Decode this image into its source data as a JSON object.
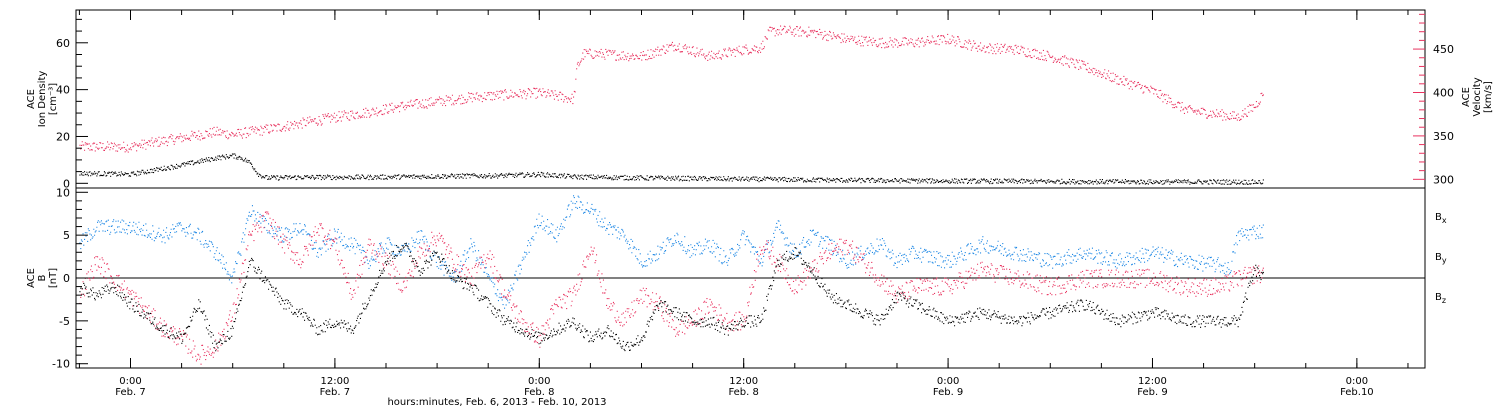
{
  "colors": {
    "black": "#000000",
    "pink": "#e8325f",
    "blue": "#1e88e5"
  },
  "x_axis": {
    "title": "hours:minutes, Feb. 6, 2013 - Feb. 10, 2013",
    "ticks": [
      {
        "time": "0:00",
        "date": "Feb. 7",
        "hours": 24
      },
      {
        "time": "12:00",
        "date": "Feb. 7",
        "hours": 36
      },
      {
        "time": "0:00",
        "date": "Feb. 8",
        "hours": 48
      },
      {
        "time": "12:00",
        "date": "Feb. 8",
        "hours": 60
      },
      {
        "time": "0:00",
        "date": "Feb. 9",
        "hours": 72
      },
      {
        "time": "12:00",
        "date": "Feb. 9",
        "hours": 84
      },
      {
        "time": "0:00",
        "date": "Feb.10",
        "hours": 96
      }
    ]
  },
  "top_panel": {
    "left_axis_label": [
      "ACE",
      "Ion Density",
      "[cm⁻³]"
    ],
    "right_axis_label": [
      "ACE",
      "Velocity",
      "[km/s]"
    ]
  },
  "bottom_panel": {
    "axis_label": [
      "ACE",
      "B",
      "[nT]"
    ],
    "legend": [
      {
        "text": "Bx",
        "sub": "x",
        "base": "B",
        "color": "#000000"
      },
      {
        "text": "By",
        "sub": "y",
        "base": "B",
        "color": "#1e88e5"
      },
      {
        "text": "Bz",
        "sub": "z",
        "base": "B",
        "color": "#e8325f"
      }
    ]
  },
  "chart_data": [
    {
      "type": "scatter",
      "title": "",
      "xlabel": "hours:minutes, Feb. 6, 2013 - Feb. 10, 2013",
      "xlim_hours": [
        20.8,
        100
      ],
      "x_unit": "hours since Feb. 6 00:00",
      "yaxes": [
        {
          "label": "ACE Ion Density [cm⁻³]",
          "side": "left",
          "ylim": [
            -2,
            74
          ],
          "ticks": [
            0,
            20,
            40,
            60
          ]
        },
        {
          "label": "ACE Velocity [km/s]",
          "side": "right",
          "ylim": [
            290,
            495
          ],
          "ticks": [
            300,
            350,
            400,
            450
          ]
        }
      ],
      "series": [
        {
          "name": "Ion Density",
          "color": "#000000",
          "axis": "left",
          "x": [
            21,
            24,
            27,
            29,
            30,
            30.5,
            31,
            31.5,
            32,
            34,
            38,
            42,
            46,
            48,
            50,
            54,
            60,
            66,
            72,
            78,
            84,
            88,
            90.5
          ],
          "y": [
            4.5,
            4,
            8,
            11,
            12,
            11,
            9,
            4,
            2.5,
            2.8,
            2.8,
            3.2,
            3.5,
            4,
            3,
            2.5,
            2,
            1.5,
            1.2,
            1,
            0.8,
            0.8,
            0.7
          ]
        },
        {
          "name": "Velocity",
          "color": "#e8325f",
          "axis": "right",
          "x": [
            21,
            24,
            26,
            29,
            30,
            32,
            34,
            36,
            38,
            40,
            42,
            44,
            46,
            48,
            50,
            50.2,
            50.6,
            51.5,
            54,
            56,
            58,
            60,
            61,
            61.5,
            62,
            64,
            66,
            68,
            70,
            72,
            74,
            76,
            78,
            80,
            82,
            84,
            86,
            88,
            89,
            90,
            90.5
          ],
          "y": [
            338,
            338,
            345,
            355,
            352,
            358,
            365,
            372,
            378,
            385,
            390,
            395,
            398,
            400,
            393,
            430,
            445,
            445,
            442,
            455,
            442,
            450,
            452,
            470,
            472,
            470,
            462,
            458,
            458,
            462,
            452,
            450,
            442,
            430,
            415,
            402,
            380,
            375,
            372,
            385,
            400
          ]
        }
      ]
    },
    {
      "type": "scatter",
      "title": "",
      "xlabel": "hours:minutes, Feb. 6, 2013 - Feb. 10, 2013",
      "ylabel": "ACE B [nT]",
      "xlim_hours": [
        20.8,
        100
      ],
      "ylim": [
        -10.5,
        10.5
      ],
      "yticks": [
        -10,
        -5,
        0,
        5,
        10
      ],
      "series": [
        {
          "name": "Bx",
          "color": "#000000",
          "x": [
            21,
            22,
            23,
            24,
            26,
            27,
            28,
            29,
            30,
            31,
            33,
            34,
            35,
            36,
            37,
            38,
            39,
            40,
            41,
            42,
            43,
            44,
            45,
            46,
            47,
            48,
            49,
            50,
            51,
            52,
            53,
            54,
            55,
            56,
            57,
            58,
            59,
            60,
            61,
            62,
            63,
            64,
            65,
            66,
            67,
            68,
            69,
            70,
            72,
            74,
            76,
            78,
            80,
            82,
            84,
            86,
            88,
            89,
            90,
            90.5
          ],
          "y": [
            -1,
            -2,
            -1,
            -3,
            -6,
            -7,
            -3,
            -8,
            -6,
            2,
            -3,
            -4,
            -6,
            -5,
            -6,
            -2,
            2,
            4,
            1,
            3,
            0,
            -1,
            -3,
            -5,
            -6,
            -7,
            -6,
            -5,
            -7,
            -6,
            -8,
            -7,
            -3,
            -4,
            -5,
            -5,
            -6,
            -5,
            -5,
            2,
            3,
            1,
            -2,
            -3,
            -4,
            -5,
            -2,
            -3,
            -5,
            -4,
            -5,
            -4,
            -3,
            -5,
            -4,
            -5,
            -5,
            -5,
            1,
            0
          ]
        },
        {
          "name": "By",
          "color": "#1e88e5",
          "x": [
            21,
            22,
            24,
            26,
            27,
            28,
            29,
            30,
            31,
            32,
            33,
            34,
            35,
            36,
            37,
            38,
            39,
            40,
            41,
            42,
            43,
            44,
            45,
            46,
            47,
            48,
            49,
            50,
            51,
            52,
            53,
            54,
            55,
            56,
            57,
            58,
            59,
            60,
            61,
            62,
            63,
            64,
            65,
            66,
            67,
            68,
            69,
            70,
            72,
            74,
            76,
            78,
            80,
            82,
            84,
            86,
            88,
            88.5,
            89,
            90,
            90.5
          ],
          "y": [
            4,
            6,
            6,
            5,
            6,
            5,
            3,
            0,
            8,
            6,
            5,
            6,
            3,
            5,
            4,
            2,
            4,
            3,
            5,
            2,
            0,
            4,
            0,
            -3,
            2,
            7,
            5,
            9,
            8,
            6,
            5,
            2,
            3,
            5,
            3,
            4,
            2,
            5,
            2,
            6,
            3,
            5,
            4,
            2,
            3,
            4,
            2,
            3,
            2,
            4,
            3,
            2,
            3,
            2,
            3,
            2,
            1.5,
            1,
            5,
            5.5,
            5.5
          ]
        },
        {
          "name": "Bz",
          "color": "#e8325f",
          "x": [
            21,
            22,
            23,
            24,
            25,
            26,
            27,
            28,
            29,
            30,
            31,
            32,
            33,
            34,
            35,
            36,
            37,
            38,
            39,
            40,
            41,
            42,
            43,
            44,
            45,
            46,
            47,
            48,
            49,
            50,
            51,
            52,
            53,
            54,
            55,
            56,
            57,
            58,
            59,
            60,
            61,
            62,
            63,
            64,
            65,
            66,
            67,
            68,
            69,
            70,
            72,
            74,
            76,
            78,
            80,
            82,
            84,
            86,
            88,
            89,
            90,
            90.5
          ],
          "y": [
            -2,
            2,
            0,
            -2,
            -4,
            -6,
            -7,
            -9,
            -8,
            -4,
            5,
            7,
            4,
            2,
            6,
            4,
            -2,
            4,
            2,
            -1,
            3,
            5,
            2,
            0,
            3,
            -2,
            -5,
            -7,
            -3,
            -2,
            4,
            -3,
            -5,
            -2,
            -3,
            -6,
            -5,
            -3,
            -5,
            -5,
            4,
            2,
            -1,
            1,
            3,
            4,
            2,
            0,
            -2,
            -1,
            -1,
            1,
            0,
            -1,
            0,
            0,
            0,
            -1,
            -1,
            0,
            0.5,
            0.5
          ]
        }
      ]
    }
  ]
}
